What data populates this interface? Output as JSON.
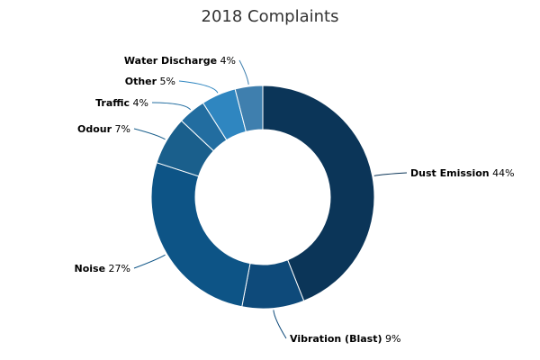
{
  "chart_data": {
    "type": "pie",
    "title": "2018 Complaints",
    "donut": true,
    "legend": "none",
    "slices": [
      {
        "name": "Dust Emission",
        "value": 44,
        "color": "#0b3558"
      },
      {
        "name": "Vibration (Blast)",
        "value": 9,
        "color": "#0e4a7a"
      },
      {
        "name": "Noise",
        "value": 27,
        "color": "#0d5486"
      },
      {
        "name": "Odour",
        "value": 7,
        "color": "#1a5f8c"
      },
      {
        "name": "Traffic",
        "value": 4,
        "color": "#226da0"
      },
      {
        "name": "Other",
        "value": 5,
        "color": "#2f86c0"
      },
      {
        "name": "Water Discharge",
        "value": 4,
        "color": "#3f7fae"
      }
    ]
  }
}
